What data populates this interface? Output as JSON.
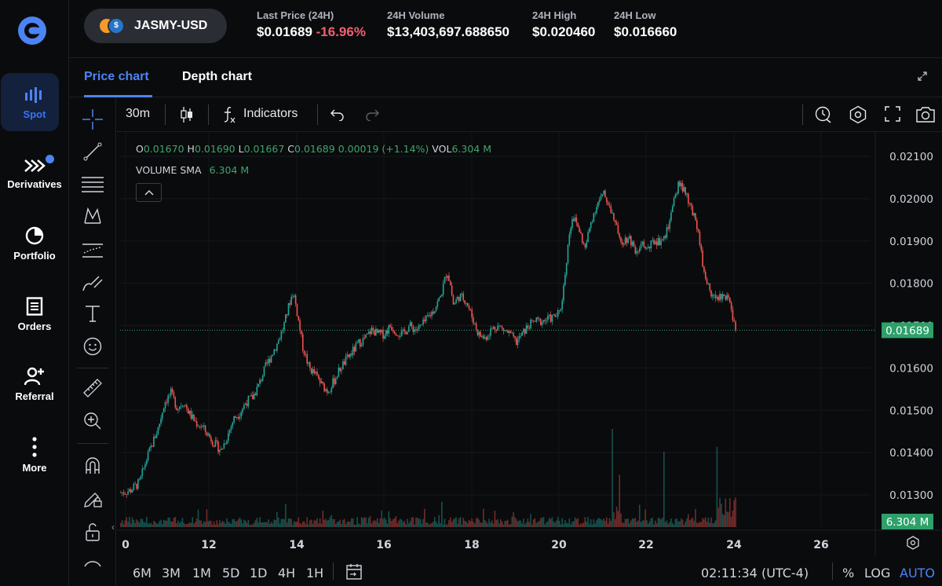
{
  "nav": {
    "items": [
      {
        "label": "Spot",
        "icon": "spot-bars-icon",
        "active": true
      },
      {
        "label": "Derivatives",
        "icon": "derivatives-icon",
        "active": false
      },
      {
        "label": "Portfolio",
        "icon": "portfolio-pie-icon",
        "active": false
      },
      {
        "label": "Orders",
        "icon": "orders-list-icon",
        "active": false
      },
      {
        "label": "Referral",
        "icon": "referral-user-icon",
        "active": false
      },
      {
        "label": "More",
        "icon": "more-dots-icon",
        "active": false
      }
    ]
  },
  "header": {
    "pair": "JASMY-USD",
    "stats": [
      {
        "key": "Last Price (24H)",
        "value": "$0.01689",
        "change": "-16.96%"
      },
      {
        "key": "24H Volume",
        "value": "$13,403,697.688650"
      },
      {
        "key": "24H High",
        "value": "$0.020460"
      },
      {
        "key": "24H Low",
        "value": "$0.016660"
      }
    ]
  },
  "tabs": [
    "Price chart",
    "Depth chart"
  ],
  "chart_toolbar": {
    "interval": "30m",
    "indicators_label": "Indicators"
  },
  "legend": {
    "o_label": "O",
    "o": "0.01670",
    "h_label": "H",
    "h": "0.01690",
    "l_label": "L",
    "l": "0.01667",
    "c_label": "C",
    "c": "0.01689",
    "change": "0.00019 (+1.14%)",
    "vol_label": "VOL",
    "vol": "6.304 M",
    "sma_label": "VOLUME SMA",
    "sma": "6.304 M"
  },
  "chart_data": {
    "type": "candlestick",
    "x_ticks": [
      "0",
      "12",
      "14",
      "16",
      "18",
      "20",
      "22",
      "24",
      "26"
    ],
    "y_ticks": [
      "0.02100",
      "0.02000",
      "0.01900",
      "0.01800",
      "0.01700",
      "0.01600",
      "0.01500",
      "0.01400",
      "0.01300"
    ],
    "y_range": [
      0.0125,
      0.0214
    ],
    "last_price_label": "0.01689",
    "volume_label": "6.304 M",
    "colors": {
      "up": "#26a69a",
      "down": "#ef5350",
      "grid": "#1c1f24",
      "last": "#2ea06a"
    },
    "path": [
      [
        0,
        0.01305
      ],
      [
        3,
        0.0131
      ],
      [
        6,
        0.0133
      ],
      [
        8,
        0.0138
      ],
      [
        10,
        0.0142
      ],
      [
        12,
        0.0146
      ],
      [
        14,
        0.0152
      ],
      [
        16,
        0.0154
      ],
      [
        18,
        0.01505
      ],
      [
        20,
        0.0152
      ],
      [
        22,
        0.0149
      ],
      [
        24,
        0.0147
      ],
      [
        26,
        0.0146
      ],
      [
        28,
        0.0144
      ],
      [
        30,
        0.0142
      ],
      [
        32,
        0.01405
      ],
      [
        34,
        0.0144
      ],
      [
        36,
        0.0148
      ],
      [
        38,
        0.01495
      ],
      [
        40,
        0.0152
      ],
      [
        42,
        0.0153
      ],
      [
        44,
        0.0156
      ],
      [
        46,
        0.016
      ],
      [
        48,
        0.0163
      ],
      [
        50,
        0.0166
      ],
      [
        52,
        0.017
      ],
      [
        54,
        0.0176
      ],
      [
        55,
        0.0178
      ],
      [
        56,
        0.0174
      ],
      [
        58,
        0.0165
      ],
      [
        60,
        0.016
      ],
      [
        62,
        0.01585
      ],
      [
        64,
        0.0156
      ],
      [
        66,
        0.01545
      ],
      [
        68,
        0.0157
      ],
      [
        70,
        0.016
      ],
      [
        72,
        0.0162
      ],
      [
        74,
        0.0164
      ],
      [
        76,
        0.0166
      ],
      [
        78,
        0.0167
      ],
      [
        80,
        0.0169
      ],
      [
        82,
        0.0168
      ],
      [
        84,
        0.0168
      ],
      [
        86,
        0.017
      ],
      [
        88,
        0.01685
      ],
      [
        90,
        0.0168
      ],
      [
        92,
        0.017
      ],
      [
        94,
        0.0169
      ],
      [
        96,
        0.017
      ],
      [
        98,
        0.0172
      ],
      [
        100,
        0.0174
      ],
      [
        102,
        0.0177
      ],
      [
        104,
        0.0183
      ],
      [
        105,
        0.018
      ],
      [
        106,
        0.0175
      ],
      [
        108,
        0.0177
      ],
      [
        110,
        0.0176
      ],
      [
        112,
        0.0172
      ],
      [
        114,
        0.0168
      ],
      [
        116,
        0.0167
      ],
      [
        118,
        0.0169
      ],
      [
        120,
        0.017
      ],
      [
        122,
        0.0169
      ],
      [
        124,
        0.0168
      ],
      [
        126,
        0.0166
      ],
      [
        128,
        0.0168
      ],
      [
        130,
        0.017
      ],
      [
        132,
        0.0171
      ],
      [
        134,
        0.0171
      ],
      [
        136,
        0.01715
      ],
      [
        138,
        0.0172
      ],
      [
        140,
        0.0173
      ],
      [
        141,
        0.0178
      ],
      [
        142,
        0.0185
      ],
      [
        143,
        0.0192
      ],
      [
        144,
        0.0196
      ],
      [
        146,
        0.0193
      ],
      [
        148,
        0.0188
      ],
      [
        150,
        0.0195
      ],
      [
        152,
        0.0199
      ],
      [
        154,
        0.0201
      ],
      [
        156,
        0.0198
      ],
      [
        158,
        0.0193
      ],
      [
        160,
        0.019
      ],
      [
        162,
        0.0191
      ],
      [
        164,
        0.0188
      ],
      [
        166,
        0.0189
      ],
      [
        168,
        0.0188
      ],
      [
        170,
        0.019
      ],
      [
        172,
        0.019
      ],
      [
        174,
        0.0192
      ],
      [
        176,
        0.0198
      ],
      [
        178,
        0.0204
      ],
      [
        180,
        0.0201
      ],
      [
        182,
        0.0197
      ],
      [
        184,
        0.0193
      ],
      [
        186,
        0.0182
      ],
      [
        188,
        0.0178
      ],
      [
        190,
        0.0176
      ],
      [
        192,
        0.0177
      ],
      [
        194,
        0.0176
      ],
      [
        195,
        0.0172
      ],
      [
        196,
        0.01689
      ]
    ]
  },
  "bottom": {
    "ranges": [
      "6M",
      "3M",
      "1M",
      "5D",
      "1D",
      "4H",
      "1H"
    ],
    "time": "02:11:34 (UTC-4)",
    "percent": "%",
    "log": "LOG",
    "auto": "AUTO"
  }
}
